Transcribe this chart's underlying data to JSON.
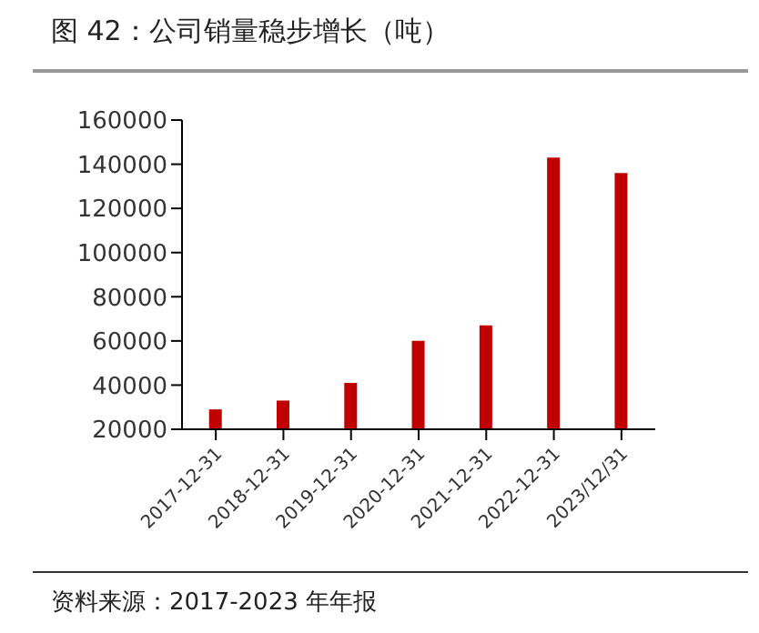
{
  "chart_data": {
    "type": "bar",
    "title": "图 42：公司销量稳步增长（吨）",
    "categories": [
      "2017-12-31",
      "2018-12-31",
      "2019-12-31",
      "2020-12-31",
      "2021-12-31",
      "2022-12-31",
      "2023/12/31"
    ],
    "values": [
      29000,
      33000,
      41000,
      60000,
      67000,
      143000,
      136000
    ],
    "color": "#c00000",
    "ylim": [
      20000,
      160000
    ],
    "yticks": [
      20000,
      40000,
      60000,
      80000,
      100000,
      120000,
      140000,
      160000
    ],
    "annotations": [
      "资料来源：2017-2023 年年报"
    ]
  }
}
